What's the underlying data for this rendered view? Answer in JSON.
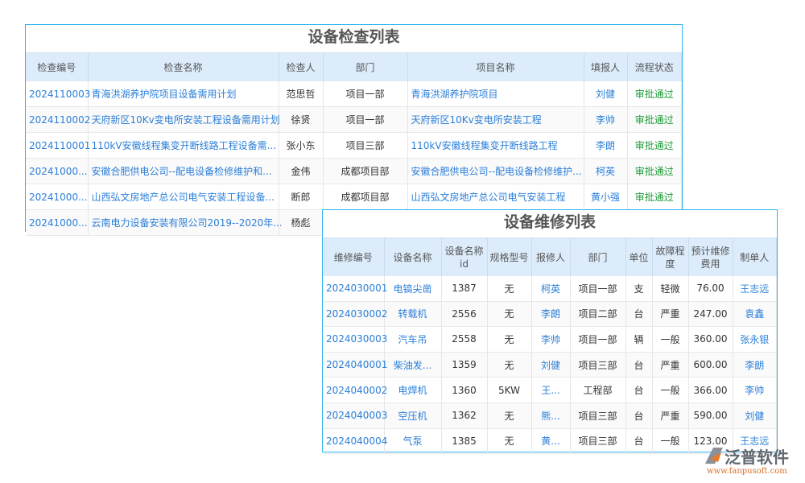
{
  "inspection": {
    "title": "设备检查列表",
    "headers": [
      "检查编号",
      "检查名称",
      "检查人",
      "部门",
      "项目名称",
      "填报人",
      "流程状态"
    ],
    "rows": [
      [
        "2024110003",
        "青海洪湖养护院项目设备需用计划",
        "范思哲",
        "项目一部",
        "青海洪湖养护院项目",
        "刘健",
        "审批通过"
      ],
      [
        "2024110002",
        "天府新区10Kv变电所安装工程设备需用计划",
        "徐贤",
        "项目一部",
        "天府新区10Kv变电所安装工程",
        "李帅",
        "审批通过"
      ],
      [
        "2024110001",
        "110kV安徽线程集变开断线路工程设备需...",
        "张小东",
        "项目三部",
        "110kV安徽线程集变开断线路工程",
        "李朗",
        "审批通过"
      ],
      [
        "20241000...",
        "安徽合肥供电公司--配电设备检修维护和...",
        "金伟",
        "成都项目部",
        "安徽合肥供电公司--配电设备检修维护...",
        "柯英",
        "审批通过"
      ],
      [
        "20241000...",
        "山西弘文房地产总公司电气安装工程设备...",
        "断郎",
        "成都项目部",
        "山西弘文房地产总公司电气安装工程",
        "黄小强",
        "审批通过"
      ],
      [
        "20241000...",
        "云南电力设备安装有限公司2019--2020年...",
        "杨彪",
        "",
        "",
        "",
        ""
      ]
    ]
  },
  "repair": {
    "title": "设备维修列表",
    "headers": [
      "维修编号",
      "设备名称",
      "设备名称id",
      "规格型号",
      "报修人",
      "部门",
      "单位",
      "故障程度",
      "预计维修费用",
      "制单人"
    ],
    "rows": [
      [
        "2024030001",
        "电镐尖凿",
        "1387",
        "无",
        "柯英",
        "项目一部",
        "支",
        "轻微",
        "76.00",
        "王志远"
      ],
      [
        "2024030002",
        "转载机",
        "2556",
        "无",
        "李朗",
        "项目二部",
        "台",
        "严重",
        "247.00",
        "袁鑫"
      ],
      [
        "2024030003",
        "汽车吊",
        "2558",
        "无",
        "李帅",
        "项目一部",
        "辆",
        "一般",
        "360.00",
        "张永银"
      ],
      [
        "2024040001",
        "柴油发...",
        "1359",
        "无",
        "刘健",
        "项目三部",
        "台",
        "严重",
        "600.00",
        "李朗"
      ],
      [
        "2024040002",
        "电焊机",
        "1360",
        "5KW",
        "王...",
        "工程部",
        "台",
        "一般",
        "366.00",
        "李帅"
      ],
      [
        "2024040003",
        "空压机",
        "1362",
        "无",
        "熊...",
        "项目三部",
        "台",
        "严重",
        "590.00",
        "刘健"
      ],
      [
        "2024040004",
        "气泵",
        "1385",
        "无",
        "黄...",
        "项目三部",
        "台",
        "一般",
        "123.00",
        "王志远"
      ]
    ]
  },
  "logo": {
    "name": "泛普软件",
    "url": "www.fanpusoft.com"
  }
}
